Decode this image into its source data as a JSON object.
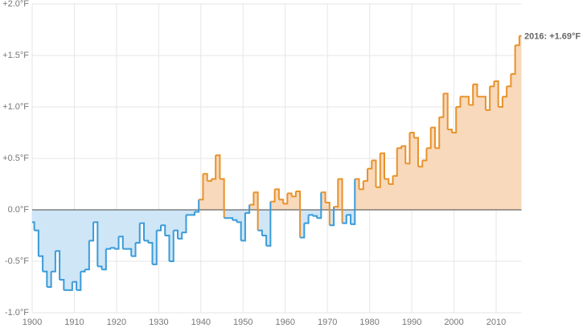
{
  "chart_data": {
    "type": "step-area",
    "annotation": "2016: +1.69°F",
    "x": [
      1900,
      1901,
      1902,
      1903,
      1904,
      1905,
      1906,
      1907,
      1908,
      1909,
      1910,
      1911,
      1912,
      1913,
      1914,
      1915,
      1916,
      1917,
      1918,
      1919,
      1920,
      1921,
      1922,
      1923,
      1924,
      1925,
      1926,
      1927,
      1928,
      1929,
      1930,
      1931,
      1932,
      1933,
      1934,
      1935,
      1936,
      1937,
      1938,
      1939,
      1940,
      1941,
      1942,
      1943,
      1944,
      1945,
      1946,
      1947,
      1948,
      1949,
      1950,
      1951,
      1952,
      1953,
      1954,
      1955,
      1956,
      1957,
      1958,
      1959,
      1960,
      1961,
      1962,
      1963,
      1964,
      1965,
      1966,
      1967,
      1968,
      1969,
      1970,
      1971,
      1972,
      1973,
      1974,
      1975,
      1976,
      1977,
      1978,
      1979,
      1980,
      1981,
      1982,
      1983,
      1984,
      1985,
      1986,
      1987,
      1988,
      1989,
      1990,
      1991,
      1992,
      1993,
      1994,
      1995,
      1996,
      1997,
      1998,
      1999,
      2000,
      2001,
      2002,
      2003,
      2004,
      2005,
      2006,
      2007,
      2008,
      2009,
      2010,
      2011,
      2012,
      2013,
      2014,
      2015,
      2016
    ],
    "values": [
      -0.12,
      -0.2,
      -0.45,
      -0.6,
      -0.75,
      -0.6,
      -0.4,
      -0.68,
      -0.78,
      -0.78,
      -0.7,
      -0.78,
      -0.6,
      -0.58,
      -0.3,
      -0.12,
      -0.55,
      -0.58,
      -0.38,
      -0.37,
      -0.38,
      -0.26,
      -0.38,
      -0.38,
      -0.45,
      -0.32,
      -0.13,
      -0.3,
      -0.32,
      -0.53,
      -0.2,
      -0.15,
      -0.25,
      -0.5,
      -0.2,
      -0.28,
      -0.22,
      -0.05,
      -0.05,
      -0.02,
      0.1,
      0.35,
      0.28,
      0.3,
      0.53,
      0.3,
      -0.08,
      -0.08,
      -0.1,
      -0.12,
      -0.3,
      -0.03,
      0.05,
      0.17,
      -0.2,
      -0.25,
      -0.35,
      0.08,
      0.2,
      0.1,
      0.06,
      0.16,
      0.13,
      0.18,
      -0.27,
      -0.13,
      -0.05,
      -0.06,
      -0.08,
      0.17,
      0.07,
      -0.15,
      0.03,
      0.3,
      -0.13,
      -0.05,
      -0.14,
      0.3,
      0.2,
      0.28,
      0.4,
      0.48,
      0.22,
      0.55,
      0.3,
      0.25,
      0.33,
      0.6,
      0.62,
      0.45,
      0.75,
      0.7,
      0.42,
      0.48,
      0.6,
      0.8,
      0.6,
      0.9,
      1.13,
      0.78,
      0.75,
      1.0,
      1.1,
      1.1,
      1.02,
      1.22,
      1.1,
      1.1,
      0.97,
      1.2,
      1.25,
      1.0,
      1.1,
      1.2,
      1.32,
      1.6,
      1.69
    ],
    "positive_color": "#e8922b",
    "positive_fill": "#f8d9bb",
    "negative_color": "#3a9bd9",
    "negative_fill": "#cfe6f7",
    "xlim": [
      1900,
      2016
    ],
    "xticks": [
      1900,
      1910,
      1920,
      1930,
      1940,
      1950,
      1960,
      1970,
      1980,
      1990,
      2000,
      2010
    ],
    "ylim": [
      -1,
      2
    ],
    "yticks": [
      {
        "value": -1,
        "label": "-1.0°F"
      },
      {
        "value": -0.5,
        "label": "-0.5°F"
      },
      {
        "value": 0,
        "label": "0.0°F"
      },
      {
        "value": 0.5,
        "label": "+0.5°F"
      },
      {
        "value": 1,
        "label": "+1.0°F"
      },
      {
        "value": 1.5,
        "label": "+1.5°F"
      },
      {
        "value": 2,
        "label": "+2.0°F"
      }
    ],
    "grid": true
  }
}
